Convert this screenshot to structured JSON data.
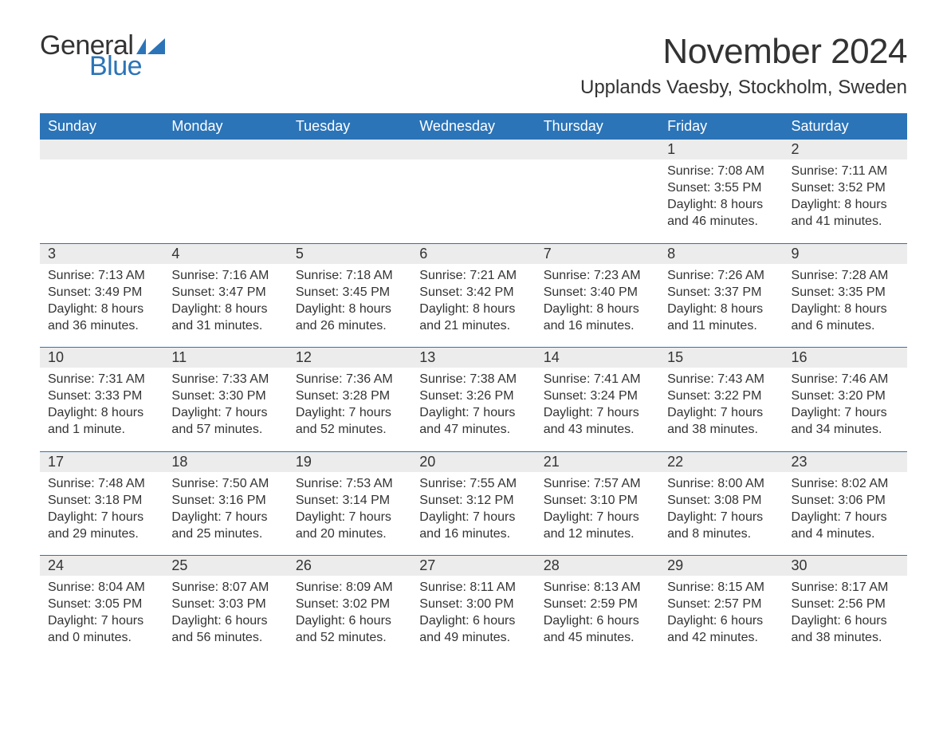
{
  "logo": {
    "text_general": "General",
    "text_blue": "Blue",
    "flag_color": "#2b74b8"
  },
  "title": "November 2024",
  "location": "Upplands Vaesby, Stockholm, Sweden",
  "weekdays": [
    "Sunday",
    "Monday",
    "Tuesday",
    "Wednesday",
    "Thursday",
    "Friday",
    "Saturday"
  ],
  "colors": {
    "header_bg": "#2b74b8",
    "header_text": "#ffffff",
    "daynum_bg": "#ececec",
    "text": "#333333",
    "rule": "#2b74b8",
    "background": "#ffffff",
    "logo_blue": "#2b74b8"
  },
  "typography": {
    "month_title_fontsize": 44,
    "location_fontsize": 24,
    "weekday_fontsize": 18,
    "daynum_fontsize": 18,
    "body_fontsize": 16,
    "logo_fontsize": 34
  },
  "weeks": [
    [
      null,
      null,
      null,
      null,
      null,
      {
        "num": "1",
        "sunrise": "Sunrise: 7:08 AM",
        "sunset": "Sunset: 3:55 PM",
        "daylight1": "Daylight: 8 hours",
        "daylight2": "and 46 minutes."
      },
      {
        "num": "2",
        "sunrise": "Sunrise: 7:11 AM",
        "sunset": "Sunset: 3:52 PM",
        "daylight1": "Daylight: 8 hours",
        "daylight2": "and 41 minutes."
      }
    ],
    [
      {
        "num": "3",
        "sunrise": "Sunrise: 7:13 AM",
        "sunset": "Sunset: 3:49 PM",
        "daylight1": "Daylight: 8 hours",
        "daylight2": "and 36 minutes."
      },
      {
        "num": "4",
        "sunrise": "Sunrise: 7:16 AM",
        "sunset": "Sunset: 3:47 PM",
        "daylight1": "Daylight: 8 hours",
        "daylight2": "and 31 minutes."
      },
      {
        "num": "5",
        "sunrise": "Sunrise: 7:18 AM",
        "sunset": "Sunset: 3:45 PM",
        "daylight1": "Daylight: 8 hours",
        "daylight2": "and 26 minutes."
      },
      {
        "num": "6",
        "sunrise": "Sunrise: 7:21 AM",
        "sunset": "Sunset: 3:42 PM",
        "daylight1": "Daylight: 8 hours",
        "daylight2": "and 21 minutes."
      },
      {
        "num": "7",
        "sunrise": "Sunrise: 7:23 AM",
        "sunset": "Sunset: 3:40 PM",
        "daylight1": "Daylight: 8 hours",
        "daylight2": "and 16 minutes."
      },
      {
        "num": "8",
        "sunrise": "Sunrise: 7:26 AM",
        "sunset": "Sunset: 3:37 PM",
        "daylight1": "Daylight: 8 hours",
        "daylight2": "and 11 minutes."
      },
      {
        "num": "9",
        "sunrise": "Sunrise: 7:28 AM",
        "sunset": "Sunset: 3:35 PM",
        "daylight1": "Daylight: 8 hours",
        "daylight2": "and 6 minutes."
      }
    ],
    [
      {
        "num": "10",
        "sunrise": "Sunrise: 7:31 AM",
        "sunset": "Sunset: 3:33 PM",
        "daylight1": "Daylight: 8 hours",
        "daylight2": "and 1 minute."
      },
      {
        "num": "11",
        "sunrise": "Sunrise: 7:33 AM",
        "sunset": "Sunset: 3:30 PM",
        "daylight1": "Daylight: 7 hours",
        "daylight2": "and 57 minutes."
      },
      {
        "num": "12",
        "sunrise": "Sunrise: 7:36 AM",
        "sunset": "Sunset: 3:28 PM",
        "daylight1": "Daylight: 7 hours",
        "daylight2": "and 52 minutes."
      },
      {
        "num": "13",
        "sunrise": "Sunrise: 7:38 AM",
        "sunset": "Sunset: 3:26 PM",
        "daylight1": "Daylight: 7 hours",
        "daylight2": "and 47 minutes."
      },
      {
        "num": "14",
        "sunrise": "Sunrise: 7:41 AM",
        "sunset": "Sunset: 3:24 PM",
        "daylight1": "Daylight: 7 hours",
        "daylight2": "and 43 minutes."
      },
      {
        "num": "15",
        "sunrise": "Sunrise: 7:43 AM",
        "sunset": "Sunset: 3:22 PM",
        "daylight1": "Daylight: 7 hours",
        "daylight2": "and 38 minutes."
      },
      {
        "num": "16",
        "sunrise": "Sunrise: 7:46 AM",
        "sunset": "Sunset: 3:20 PM",
        "daylight1": "Daylight: 7 hours",
        "daylight2": "and 34 minutes."
      }
    ],
    [
      {
        "num": "17",
        "sunrise": "Sunrise: 7:48 AM",
        "sunset": "Sunset: 3:18 PM",
        "daylight1": "Daylight: 7 hours",
        "daylight2": "and 29 minutes."
      },
      {
        "num": "18",
        "sunrise": "Sunrise: 7:50 AM",
        "sunset": "Sunset: 3:16 PM",
        "daylight1": "Daylight: 7 hours",
        "daylight2": "and 25 minutes."
      },
      {
        "num": "19",
        "sunrise": "Sunrise: 7:53 AM",
        "sunset": "Sunset: 3:14 PM",
        "daylight1": "Daylight: 7 hours",
        "daylight2": "and 20 minutes."
      },
      {
        "num": "20",
        "sunrise": "Sunrise: 7:55 AM",
        "sunset": "Sunset: 3:12 PM",
        "daylight1": "Daylight: 7 hours",
        "daylight2": "and 16 minutes."
      },
      {
        "num": "21",
        "sunrise": "Sunrise: 7:57 AM",
        "sunset": "Sunset: 3:10 PM",
        "daylight1": "Daylight: 7 hours",
        "daylight2": "and 12 minutes."
      },
      {
        "num": "22",
        "sunrise": "Sunrise: 8:00 AM",
        "sunset": "Sunset: 3:08 PM",
        "daylight1": "Daylight: 7 hours",
        "daylight2": "and 8 minutes."
      },
      {
        "num": "23",
        "sunrise": "Sunrise: 8:02 AM",
        "sunset": "Sunset: 3:06 PM",
        "daylight1": "Daylight: 7 hours",
        "daylight2": "and 4 minutes."
      }
    ],
    [
      {
        "num": "24",
        "sunrise": "Sunrise: 8:04 AM",
        "sunset": "Sunset: 3:05 PM",
        "daylight1": "Daylight: 7 hours",
        "daylight2": "and 0 minutes."
      },
      {
        "num": "25",
        "sunrise": "Sunrise: 8:07 AM",
        "sunset": "Sunset: 3:03 PM",
        "daylight1": "Daylight: 6 hours",
        "daylight2": "and 56 minutes."
      },
      {
        "num": "26",
        "sunrise": "Sunrise: 8:09 AM",
        "sunset": "Sunset: 3:02 PM",
        "daylight1": "Daylight: 6 hours",
        "daylight2": "and 52 minutes."
      },
      {
        "num": "27",
        "sunrise": "Sunrise: 8:11 AM",
        "sunset": "Sunset: 3:00 PM",
        "daylight1": "Daylight: 6 hours",
        "daylight2": "and 49 minutes."
      },
      {
        "num": "28",
        "sunrise": "Sunrise: 8:13 AM",
        "sunset": "Sunset: 2:59 PM",
        "daylight1": "Daylight: 6 hours",
        "daylight2": "and 45 minutes."
      },
      {
        "num": "29",
        "sunrise": "Sunrise: 8:15 AM",
        "sunset": "Sunset: 2:57 PM",
        "daylight1": "Daylight: 6 hours",
        "daylight2": "and 42 minutes."
      },
      {
        "num": "30",
        "sunrise": "Sunrise: 8:17 AM",
        "sunset": "Sunset: 2:56 PM",
        "daylight1": "Daylight: 6 hours",
        "daylight2": "and 38 minutes."
      }
    ]
  ]
}
